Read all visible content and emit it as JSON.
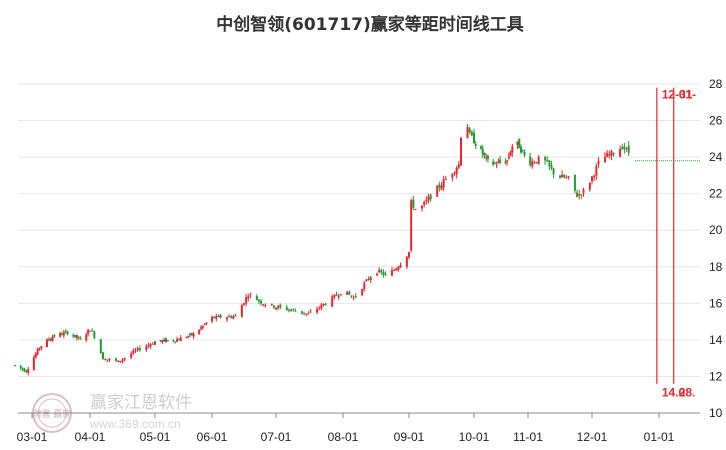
{
  "chart_data": {
    "type": "candlestick",
    "title": "中创智领(601717)赢家等距时间线工具",
    "y_axis": {
      "ticks": [
        10,
        12,
        14,
        16,
        18,
        20,
        22,
        24,
        26,
        28
      ],
      "ylim": [
        10,
        28.6
      ],
      "position": "right"
    },
    "x_axis": {
      "ticks": [
        "03-01",
        "04-01",
        "05-01",
        "06-01",
        "07-01",
        "08-01",
        "09-01",
        "10-01",
        "11-01",
        "12-01",
        "01-01"
      ]
    },
    "grid": "horizontal",
    "candle_colors": {
      "up": "#e8262d",
      "down": "#1f9e2e",
      "neutral": "#333333"
    },
    "anchor_points": [
      {
        "date": "02-20",
        "price": 12.6
      },
      {
        "date": "02-26",
        "price": 12.3
      },
      {
        "date": "03-05",
        "price": 13.6
      },
      {
        "date": "03-12",
        "price": 14.2
      },
      {
        "date": "03-20",
        "price": 14.4
      },
      {
        "date": "03-27",
        "price": 14.0
      },
      {
        "date": "04-01",
        "price": 14.6
      },
      {
        "date": "04-03",
        "price": 14.2
      },
      {
        "date": "04-07",
        "price": 13.0
      },
      {
        "date": "04-14",
        "price": 12.8
      },
      {
        "date": "04-22",
        "price": 13.4
      },
      {
        "date": "05-01",
        "price": 13.9
      },
      {
        "date": "05-12",
        "price": 14.0
      },
      {
        "date": "05-22",
        "price": 14.3
      },
      {
        "date": "06-01",
        "price": 15.2
      },
      {
        "date": "06-12",
        "price": 15.3
      },
      {
        "date": "06-18",
        "price": 16.5
      },
      {
        "date": "06-25",
        "price": 16.0
      },
      {
        "date": "07-01",
        "price": 15.8
      },
      {
        "date": "07-10",
        "price": 15.6
      },
      {
        "date": "07-16",
        "price": 15.4
      },
      {
        "date": "07-25",
        "price": 16.1
      },
      {
        "date": "08-01",
        "price": 16.7
      },
      {
        "date": "08-06",
        "price": 16.3
      },
      {
        "date": "08-12",
        "price": 17.2
      },
      {
        "date": "08-16",
        "price": 17.8
      },
      {
        "date": "08-22",
        "price": 17.5
      },
      {
        "date": "08-28",
        "price": 18.2
      },
      {
        "date": "09-01",
        "price": 18.8
      },
      {
        "date": "09-02",
        "price": 21.5
      },
      {
        "date": "09-05",
        "price": 21.0
      },
      {
        "date": "09-12",
        "price": 22.0
      },
      {
        "date": "09-18",
        "price": 22.8
      },
      {
        "date": "09-24",
        "price": 23.6
      },
      {
        "date": "09-26",
        "price": 26.8
      },
      {
        "date": "09-29",
        "price": 25.2
      },
      {
        "date": "10-03",
        "price": 24.6
      },
      {
        "date": "10-10",
        "price": 23.6
      },
      {
        "date": "10-16",
        "price": 23.7
      },
      {
        "date": "10-20",
        "price": 23.8
      },
      {
        "date": "10-24",
        "price": 24.9
      },
      {
        "date": "10-27",
        "price": 24.6
      },
      {
        "date": "11-01",
        "price": 23.7
      },
      {
        "date": "11-08",
        "price": 23.9
      },
      {
        "date": "11-14",
        "price": 23.0
      },
      {
        "date": "11-20",
        "price": 22.8
      },
      {
        "date": "11-24",
        "price": 21.9
      },
      {
        "date": "11-28",
        "price": 22.2
      },
      {
        "date": "12-01",
        "price": 22.9
      },
      {
        "date": "12-05",
        "price": 23.9
      },
      {
        "date": "12-12",
        "price": 24.3
      },
      {
        "date": "12-15",
        "price": 24.6
      },
      {
        "date": "12-20",
        "price": 24.0
      }
    ],
    "last_close": 23.8,
    "time_markers": [
      {
        "date": "12-31",
        "label": "12-31",
        "value_label": "14.0"
      },
      {
        "date": "01-08",
        "label": "01-",
        "value_label": "28."
      }
    ]
  },
  "watermark": {
    "logo_text": "财富 赢家",
    "brand": "赢家江恩软件",
    "url": "www.369.com.cn"
  },
  "colors": {
    "grid": "#e6e6e6",
    "axis": "#888888",
    "marker": "#e8262d",
    "last_close_line": "#1f9e2e"
  }
}
